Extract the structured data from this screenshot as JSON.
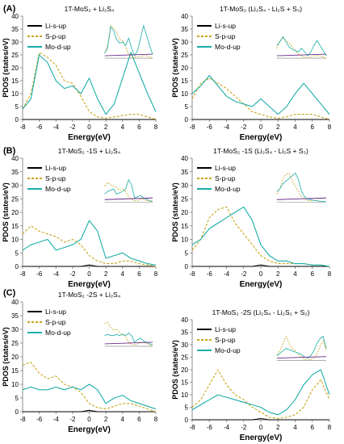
{
  "panel_labels": [
    "(A)",
    "(B)",
    "(C)"
  ],
  "colors": {
    "li": "#000000",
    "s": "#c8a418",
    "mo": "#1aaea8",
    "inset_purple": "#6a2a8a",
    "axis": "#7f7f7f"
  },
  "chart_data": [
    {
      "type": "line",
      "title": "1T-MoS₂ + Li₂S₄",
      "xlabel": "Energy(eV)",
      "ylabel": "PDOS (states/eV)",
      "xlim": [
        -8,
        8
      ],
      "ylim": [
        0,
        40
      ],
      "xticks": [
        -8,
        -6,
        -4,
        -2,
        0,
        2,
        4,
        6,
        8
      ],
      "yticks": [
        0,
        5,
        10,
        15,
        20,
        25,
        30,
        35,
        40
      ],
      "legend": [
        "Li-s-up",
        "S-p-up",
        "Mo-d-up"
      ],
      "x": [
        -8,
        -7,
        -6,
        -5,
        -4,
        -3,
        -2,
        -1,
        0,
        1,
        2,
        3,
        4,
        5,
        6,
        7,
        8
      ],
      "series": [
        {
          "name": "Li-s-up",
          "values": [
            0,
            0,
            0,
            0,
            0,
            0,
            0,
            0,
            0,
            0,
            0,
            0,
            0,
            0,
            0,
            0,
            0
          ]
        },
        {
          "name": "S-p-up",
          "values": [
            4,
            10,
            26,
            24,
            21,
            15,
            14,
            9,
            3,
            1,
            0.5,
            1,
            1.5,
            2,
            2,
            1,
            0
          ]
        },
        {
          "name": "Mo-d-up",
          "values": [
            4,
            8,
            25,
            22,
            15,
            12,
            13,
            10,
            16,
            8,
            2,
            6,
            16,
            26,
            18,
            10,
            3
          ]
        }
      ]
    },
    {
      "type": "line",
      "title": "1T-MoS₂ (Li₂S₄ - Li₂S + S₃)",
      "xlabel": "Energy(eV)",
      "ylabel": "PDOS (states/eV)",
      "xlim": [
        -8,
        8
      ],
      "ylim": [
        0,
        40
      ],
      "xticks": [
        -8,
        -6,
        -4,
        -2,
        0,
        2,
        4,
        6,
        8
      ],
      "yticks": [
        0,
        5,
        10,
        15,
        20,
        25,
        30,
        35,
        40
      ],
      "legend": [
        "Li-s-up",
        "S-p-up",
        "Mo-d-up"
      ],
      "x": [
        -8,
        -7,
        -6,
        -5,
        -4,
        -3,
        -2,
        -1,
        0,
        1,
        2,
        3,
        4,
        5,
        6,
        7,
        8
      ],
      "series": [
        {
          "name": "Li-s-up",
          "values": [
            0,
            0,
            0,
            0,
            0,
            0,
            0,
            0,
            0,
            0,
            0,
            0,
            0,
            0,
            0,
            0,
            0
          ]
        },
        {
          "name": "S-p-up",
          "values": [
            8,
            14,
            16,
            14,
            12,
            9,
            6,
            3,
            2,
            1,
            0.5,
            1,
            2,
            2,
            2,
            1,
            0
          ]
        },
        {
          "name": "Mo-d-up",
          "values": [
            10,
            13,
            17,
            13,
            9,
            7,
            6,
            5,
            8,
            5,
            2,
            5,
            10,
            14,
            10,
            6,
            2
          ]
        }
      ]
    },
    {
      "type": "line",
      "title": "1T-MoS₂ -1S + Li₂S₄",
      "xlabel": "Energy(eV)",
      "ylabel": "PDOS (states/eV)",
      "xlim": [
        -8,
        8
      ],
      "ylim": [
        0,
        40
      ],
      "xticks": [
        -8,
        -6,
        -4,
        -2,
        0,
        2,
        4,
        6,
        8
      ],
      "yticks": [
        0,
        5,
        10,
        15,
        20,
        25,
        30,
        35,
        40
      ],
      "legend": [
        "Li-s-up",
        "S-p-up",
        "Mo-d-up"
      ],
      "x": [
        -8,
        -7,
        -6,
        -5,
        -4,
        -3,
        -2,
        -1,
        0,
        1,
        2,
        3,
        4,
        5,
        6,
        7,
        8
      ],
      "series": [
        {
          "name": "Li-s-up",
          "values": [
            0,
            0,
            0,
            0,
            0,
            0,
            0,
            0,
            0.5,
            0,
            0,
            0,
            0,
            0,
            0,
            0,
            0
          ]
        },
        {
          "name": "S-p-up",
          "values": [
            12,
            15,
            13,
            12,
            11,
            9,
            10,
            8,
            4,
            2,
            1,
            1,
            2,
            2,
            1,
            0.5,
            0
          ]
        },
        {
          "name": "Mo-d-up",
          "values": [
            6,
            8,
            9,
            10,
            6,
            7,
            8,
            10,
            17,
            13,
            3,
            4,
            5,
            3,
            2,
            1,
            0.5
          ]
        }
      ]
    },
    {
      "type": "line",
      "title": "1T-MoS₂ -1S (Li₂S₄ - Li₂S + S₃)",
      "xlabel": "Energy(eV)",
      "ylabel": "PDOS (states/eV)",
      "xlim": [
        -8,
        8
      ],
      "ylim": [
        0,
        40
      ],
      "xticks": [
        -8,
        -6,
        -4,
        -2,
        0,
        2,
        4,
        6,
        8
      ],
      "yticks": [
        0,
        5,
        10,
        15,
        20,
        25,
        30,
        35,
        40
      ],
      "legend": [
        "Li-s-up",
        "S-p-up",
        "Mo-d-up"
      ],
      "x": [
        -8,
        -7,
        -6,
        -5,
        -4,
        -3,
        -2,
        -1,
        0,
        1,
        2,
        3,
        4,
        5,
        6,
        7,
        8
      ],
      "series": [
        {
          "name": "Li-s-up",
          "values": [
            0,
            0,
            0,
            0,
            0,
            0,
            0,
            0,
            0.5,
            0,
            0,
            0,
            0,
            0,
            0,
            0,
            0
          ]
        },
        {
          "name": "S-p-up",
          "values": [
            6,
            10,
            18,
            21,
            22,
            16,
            12,
            8,
            4,
            2,
            1,
            1,
            1,
            1,
            0.5,
            0.5,
            0
          ]
        },
        {
          "name": "Mo-d-up",
          "values": [
            8,
            10,
            14,
            16,
            18,
            20,
            22,
            17,
            8,
            4,
            2,
            2,
            1,
            1,
            0.5,
            0.5,
            0
          ]
        }
      ]
    },
    {
      "type": "line",
      "title": "1T-MoS₂ -2S + Li₂S₄",
      "xlabel": "Energy(eV)",
      "ylabel": "PDOS (states/eV)",
      "xlim": [
        -8,
        8
      ],
      "ylim": [
        0,
        40
      ],
      "xticks": [
        -8,
        -6,
        -4,
        -2,
        0,
        2,
        4,
        6,
        8
      ],
      "yticks": [
        0,
        5,
        10,
        15,
        20,
        25,
        30,
        35,
        40
      ],
      "legend": [
        "Li-s-up",
        "S-p-up",
        "Mo-d-up"
      ],
      "x": [
        -8,
        -7,
        -6,
        -5,
        -4,
        -3,
        -2,
        -1,
        0,
        1,
        2,
        3,
        4,
        5,
        6,
        7,
        8
      ],
      "series": [
        {
          "name": "Li-s-up",
          "values": [
            0,
            0,
            0,
            0,
            0,
            0,
            0,
            0,
            0.5,
            0,
            0,
            0,
            0,
            0,
            0,
            0,
            0
          ]
        },
        {
          "name": "S-p-up",
          "values": [
            17,
            18,
            14,
            12,
            13,
            10,
            9,
            7,
            3,
            1.5,
            1,
            2,
            3,
            3,
            2,
            1,
            0
          ]
        },
        {
          "name": "Mo-d-up",
          "values": [
            8,
            9,
            8,
            8,
            9,
            8,
            9,
            8,
            10,
            8,
            3,
            5,
            6,
            4,
            3,
            2,
            1
          ]
        }
      ]
    },
    {
      "type": "line",
      "title": "1T-MoS₂ -2S (Li₂S₄ - Li₂S₂ + S₂)",
      "xlabel": "Energy(eV)",
      "ylabel": "PDOS (states/eV)",
      "xlim": [
        -8,
        8
      ],
      "ylim": [
        0,
        40
      ],
      "xticks": [
        -8,
        -6,
        -4,
        -2,
        0,
        2,
        4,
        6,
        8
      ],
      "yticks": [
        0,
        5,
        10,
        15,
        20,
        25,
        30,
        35,
        40
      ],
      "legend": [
        "Li-s-up",
        "S-p-up",
        "Mo-d-up"
      ],
      "x": [
        -8,
        -7,
        -6,
        -5,
        -4,
        -3,
        -2,
        -1,
        0,
        1,
        2,
        3,
        4,
        5,
        6,
        7,
        8
      ],
      "series": [
        {
          "name": "Li-s-up",
          "values": [
            0,
            0,
            0,
            0,
            0,
            0,
            0,
            0,
            0.5,
            0,
            0,
            0,
            0,
            0,
            0,
            0,
            0
          ]
        },
        {
          "name": "S-p-up",
          "values": [
            5,
            8,
            14,
            20,
            14,
            10,
            8,
            5,
            3,
            1,
            0.5,
            1,
            2,
            5,
            12,
            16,
            8
          ]
        },
        {
          "name": "Mo-d-up",
          "values": [
            4,
            6,
            8,
            10,
            9,
            8,
            7,
            6,
            5,
            3,
            2,
            4,
            8,
            14,
            18,
            20,
            10
          ]
        }
      ]
    }
  ]
}
